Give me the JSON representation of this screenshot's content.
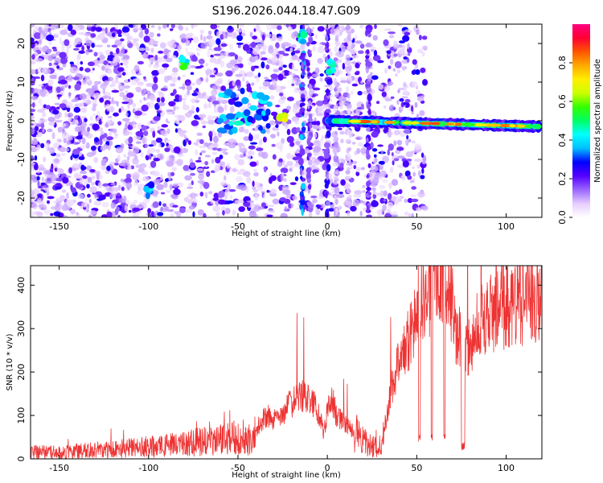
{
  "figure_title": "S196.2026.044.18.47.G09",
  "chart_data": [
    {
      "type": "heatmap",
      "name": "spectrogram",
      "xlabel": "Height of straight line (km)",
      "ylabel": "Frequency (Hz)",
      "xlim": [
        -166,
        120
      ],
      "ylim": [
        -25,
        25
      ],
      "xticks": [
        -150,
        -100,
        -50,
        0,
        50,
        100
      ],
      "xtick_labels": [
        "-150",
        "-100",
        "-50",
        "0",
        "50",
        "100"
      ],
      "yticks": [
        -20,
        -10,
        0,
        10,
        20
      ],
      "ytick_labels": [
        "-20",
        "-10",
        "0",
        "10",
        "20"
      ],
      "colorbar": {
        "label": "Normalized spectral amplitude",
        "range": [
          0,
          1
        ],
        "ticks": [
          0.0,
          0.2,
          0.4,
          0.6,
          0.8
        ],
        "tick_labels": [
          "0.0",
          "0.2",
          "0.4",
          "0.6",
          "0.8"
        ],
        "colormap": [
          "#ffffff",
          "#e6ccff",
          "#9966ff",
          "#5500ff",
          "#0000ff",
          "#00bfff",
          "#00ffff",
          "#00ff66",
          "#33ff00",
          "#ccff00",
          "#ffee00",
          "#ffaa00",
          "#ff5500",
          "#ff0033",
          "#ff0080"
        ]
      },
      "features": [
        {
          "desc": "main ridge",
          "x_range": [
            0,
            118
          ],
          "freq_start": 0,
          "freq_end": -1.5,
          "peak_amplitude": 0.9
        },
        {
          "desc": "strong cluster",
          "x": -80,
          "freq": 15,
          "amplitude": 0.6
        },
        {
          "desc": "strong cluster",
          "x": 2,
          "freq": 14,
          "amplitude": 0.55
        },
        {
          "desc": "strong cluster",
          "x": -14,
          "freq": 22,
          "amplitude": 0.55
        },
        {
          "desc": "strong cluster",
          "x": -25,
          "freq": 1,
          "amplitude": 0.8
        },
        {
          "desc": "strong cluster",
          "x": -100,
          "freq": -18,
          "amplitude": 0.45
        }
      ]
    },
    {
      "type": "line",
      "name": "snr",
      "xlabel": "Height of straight line (km)",
      "ylabel": "SNR (10 * v/v)",
      "xlim": [
        -166,
        120
      ],
      "ylim": [
        0,
        445
      ],
      "xticks": [
        -150,
        -100,
        -50,
        0,
        50,
        100
      ],
      "xtick_labels": [
        "-150",
        "-100",
        "-50",
        "0",
        "50",
        "100"
      ],
      "yticks": [
        0,
        100,
        200,
        300,
        400
      ],
      "ytick_labels": [
        "0",
        "100",
        "200",
        "300",
        "400"
      ],
      "series": [
        {
          "name": "SNR",
          "color": "#ee3333",
          "x": [
            -166,
            -150,
            -130,
            -110,
            -90,
            -70,
            -60,
            -50,
            -42,
            -38,
            -34,
            -30,
            -26,
            -22,
            -18,
            -14,
            -10,
            -6,
            -2,
            0,
            2,
            5,
            10,
            15,
            20,
            25,
            30,
            35,
            38,
            40,
            42,
            45,
            48,
            50,
            52,
            55,
            58,
            60,
            62,
            65,
            68,
            70,
            72,
            75,
            78,
            80,
            85,
            90,
            95,
            100,
            105,
            110,
            115,
            120
          ],
          "values": [
            15,
            15,
            20,
            25,
            30,
            40,
            45,
            50,
            45,
            80,
            100,
            90,
            95,
            120,
            140,
            150,
            130,
            120,
            60,
            110,
            150,
            100,
            80,
            60,
            40,
            30,
            20,
            150,
            200,
            230,
            230,
            270,
            300,
            350,
            370,
            390,
            380,
            420,
            410,
            410,
            390,
            350,
            300,
            270,
            250,
            270,
            310,
            330,
            340,
            350,
            350,
            360,
            365,
            370
          ]
        }
      ],
      "dropouts": [
        {
          "x_range": [
            51,
            52
          ],
          "level": 40
        },
        {
          "x_range": [
            58,
            59
          ],
          "level": 40
        },
        {
          "x_range": [
            65,
            66
          ],
          "level": 40
        },
        {
          "x_range": [
            75,
            77
          ],
          "level": 20
        }
      ]
    }
  ]
}
